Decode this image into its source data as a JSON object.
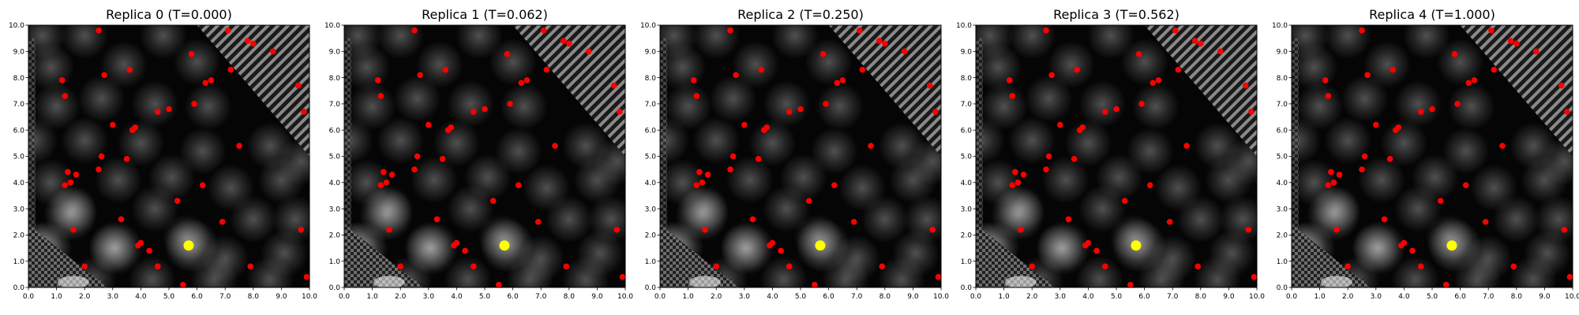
{
  "figure": {
    "background": "#ffffff"
  },
  "chart_data": [
    {
      "type": "scatter",
      "title": "Replica 0 (T=0.000)",
      "xlim": [
        0,
        10
      ],
      "ylim": [
        0,
        10
      ],
      "xticks": [
        "0.0",
        "1.0",
        "2.0",
        "3.0",
        "4.0",
        "5.0",
        "6.0",
        "7.0",
        "8.0",
        "9.0",
        "10.0"
      ],
      "yticks": [
        "0.0",
        "1.0",
        "2.0",
        "3.0",
        "4.0",
        "5.0",
        "6.0",
        "7.0",
        "8.0",
        "9.0",
        "10.0"
      ],
      "background": "grayscale-field",
      "series": [
        {
          "color": "#ff0000",
          "x": [
            2.5,
            5.8,
            7.1,
            7.8,
            8.0,
            8.7,
            9.6,
            9.8,
            7.2,
            6.5,
            6.3,
            3.6,
            1.2,
            1.3,
            2.7,
            3.0,
            3.8,
            3.7,
            4.6,
            5.0,
            5.9,
            7.5,
            6.2,
            1.4,
            1.5,
            1.7,
            1.3,
            2.5,
            2.6,
            3.5,
            5.3,
            1.6,
            3.3,
            4.0,
            4.3,
            3.9,
            4.6,
            6.9,
            2.0,
            5.5,
            7.9,
            9.7,
            9.9
          ],
          "y": [
            9.8,
            8.9,
            9.8,
            9.4,
            9.3,
            9.0,
            7.7,
            6.7,
            8.3,
            7.9,
            7.8,
            8.3,
            7.9,
            7.3,
            8.1,
            6.2,
            6.1,
            6.0,
            6.7,
            6.8,
            7.0,
            5.4,
            3.9,
            4.4,
            4.0,
            4.3,
            3.9,
            4.5,
            5.0,
            4.9,
            3.3,
            2.2,
            2.6,
            1.7,
            1.4,
            1.6,
            0.8,
            2.5,
            0.8,
            0.1,
            0.8,
            2.2,
            0.4
          ]
        },
        {
          "color": "#ffff00",
          "x": [
            5.7
          ],
          "y": [
            1.6
          ]
        }
      ]
    },
    {
      "type": "scatter",
      "title": "Replica 1 (T=0.062)",
      "xlim": [
        0,
        10
      ],
      "ylim": [
        0,
        10
      ],
      "xticks": [
        "0.0",
        "1.0",
        "2.0",
        "3.0",
        "4.0",
        "5.0",
        "6.0",
        "7.0",
        "8.0",
        "9.0",
        "10.0"
      ],
      "yticks": [
        "0.0",
        "1.0",
        "2.0",
        "3.0",
        "4.0",
        "5.0",
        "6.0",
        "7.0",
        "8.0",
        "9.0",
        "10.0"
      ],
      "background": "grayscale-field",
      "series": [
        {
          "color": "#ff0000",
          "x": [
            2.5,
            5.8,
            7.1,
            7.8,
            8.0,
            8.7,
            9.6,
            9.8,
            7.2,
            6.5,
            6.3,
            3.6,
            1.2,
            1.3,
            2.7,
            3.0,
            3.8,
            3.7,
            4.6,
            5.0,
            5.9,
            7.5,
            6.2,
            1.4,
            1.5,
            1.7,
            1.3,
            2.5,
            2.6,
            3.5,
            5.3,
            1.6,
            3.3,
            4.0,
            4.3,
            3.9,
            4.6,
            6.9,
            2.0,
            5.5,
            7.9,
            9.7,
            9.9
          ],
          "y": [
            9.8,
            8.9,
            9.8,
            9.4,
            9.3,
            9.0,
            7.7,
            6.7,
            8.3,
            7.9,
            7.8,
            8.3,
            7.9,
            7.3,
            8.1,
            6.2,
            6.1,
            6.0,
            6.7,
            6.8,
            7.0,
            5.4,
            3.9,
            4.4,
            4.0,
            4.3,
            3.9,
            4.5,
            5.0,
            4.9,
            3.3,
            2.2,
            2.6,
            1.7,
            1.4,
            1.6,
            0.8,
            2.5,
            0.8,
            0.1,
            0.8,
            2.2,
            0.4
          ]
        },
        {
          "color": "#ffff00",
          "x": [
            5.7
          ],
          "y": [
            1.6
          ]
        }
      ]
    },
    {
      "type": "scatter",
      "title": "Replica 2 (T=0.250)",
      "xlim": [
        0,
        10
      ],
      "ylim": [
        0,
        10
      ],
      "xticks": [
        "0.0",
        "1.0",
        "2.0",
        "3.0",
        "4.0",
        "5.0",
        "6.0",
        "7.0",
        "8.0",
        "9.0",
        "10.0"
      ],
      "yticks": [
        "0.0",
        "1.0",
        "2.0",
        "3.0",
        "4.0",
        "5.0",
        "6.0",
        "7.0",
        "8.0",
        "9.0",
        "10.0"
      ],
      "background": "grayscale-field",
      "series": [
        {
          "color": "#ff0000",
          "x": [
            2.5,
            5.8,
            7.1,
            7.8,
            8.0,
            8.7,
            9.6,
            9.8,
            7.2,
            6.5,
            6.3,
            3.6,
            1.2,
            1.3,
            2.7,
            3.0,
            3.8,
            3.7,
            4.6,
            5.0,
            5.9,
            7.5,
            6.2,
            1.4,
            1.5,
            1.7,
            1.3,
            2.5,
            2.6,
            3.5,
            5.3,
            1.6,
            3.3,
            4.0,
            4.3,
            3.9,
            4.6,
            6.9,
            2.0,
            5.5,
            7.9,
            9.7,
            9.9
          ],
          "y": [
            9.8,
            8.9,
            9.8,
            9.4,
            9.3,
            9.0,
            7.7,
            6.7,
            8.3,
            7.9,
            7.8,
            8.3,
            7.9,
            7.3,
            8.1,
            6.2,
            6.1,
            6.0,
            6.7,
            6.8,
            7.0,
            5.4,
            3.9,
            4.4,
            4.0,
            4.3,
            3.9,
            4.5,
            5.0,
            4.9,
            3.3,
            2.2,
            2.6,
            1.7,
            1.4,
            1.6,
            0.8,
            2.5,
            0.8,
            0.1,
            0.8,
            2.2,
            0.4
          ]
        },
        {
          "color": "#ffff00",
          "x": [
            5.7
          ],
          "y": [
            1.6
          ]
        }
      ]
    },
    {
      "type": "scatter",
      "title": "Replica 3 (T=0.562)",
      "xlim": [
        0,
        10
      ],
      "ylim": [
        0,
        10
      ],
      "xticks": [
        "0.0",
        "1.0",
        "2.0",
        "3.0",
        "4.0",
        "5.0",
        "6.0",
        "7.0",
        "8.0",
        "9.0",
        "10.0"
      ],
      "yticks": [
        "0.0",
        "1.0",
        "2.0",
        "3.0",
        "4.0",
        "5.0",
        "6.0",
        "7.0",
        "8.0",
        "9.0",
        "10.0"
      ],
      "background": "grayscale-field",
      "series": [
        {
          "color": "#ff0000",
          "x": [
            2.5,
            5.8,
            7.1,
            7.8,
            8.0,
            8.7,
            9.6,
            9.8,
            7.2,
            6.5,
            6.3,
            3.6,
            1.2,
            1.3,
            2.7,
            3.0,
            3.8,
            3.7,
            4.6,
            5.0,
            5.9,
            7.5,
            6.2,
            1.4,
            1.5,
            1.7,
            1.3,
            2.5,
            2.6,
            3.5,
            5.3,
            1.6,
            3.3,
            4.0,
            4.3,
            3.9,
            4.6,
            6.9,
            2.0,
            5.5,
            7.9,
            9.7,
            9.9
          ],
          "y": [
            9.8,
            8.9,
            9.8,
            9.4,
            9.3,
            9.0,
            7.7,
            6.7,
            8.3,
            7.9,
            7.8,
            8.3,
            7.9,
            7.3,
            8.1,
            6.2,
            6.1,
            6.0,
            6.7,
            6.8,
            7.0,
            5.4,
            3.9,
            4.4,
            4.0,
            4.3,
            3.9,
            4.5,
            5.0,
            4.9,
            3.3,
            2.2,
            2.6,
            1.7,
            1.4,
            1.6,
            0.8,
            2.5,
            0.8,
            0.1,
            0.8,
            2.2,
            0.4
          ]
        },
        {
          "color": "#ffff00",
          "x": [
            5.7
          ],
          "y": [
            1.6
          ]
        }
      ]
    },
    {
      "type": "scatter",
      "title": "Replica 4 (T=1.000)",
      "xlim": [
        0,
        10
      ],
      "ylim": [
        0,
        10
      ],
      "xticks": [
        "0.0",
        "1.0",
        "2.0",
        "3.0",
        "4.0",
        "5.0",
        "6.0",
        "7.0",
        "8.0",
        "9.0",
        "10.0"
      ],
      "yticks": [
        "0.0",
        "1.0",
        "2.0",
        "3.0",
        "4.0",
        "5.0",
        "6.0",
        "7.0",
        "8.0",
        "9.0",
        "10.0"
      ],
      "background": "grayscale-field",
      "series": [
        {
          "color": "#ff0000",
          "x": [
            2.5,
            5.8,
            7.1,
            7.8,
            8.0,
            8.7,
            9.6,
            9.8,
            7.2,
            6.5,
            6.3,
            3.6,
            1.2,
            1.3,
            2.7,
            3.0,
            3.8,
            3.7,
            4.6,
            5.0,
            5.9,
            7.5,
            6.2,
            1.4,
            1.5,
            1.7,
            1.3,
            2.5,
            2.6,
            3.5,
            5.3,
            1.6,
            3.3,
            4.0,
            4.3,
            3.9,
            4.6,
            6.9,
            2.0,
            5.5,
            7.9,
            9.7,
            9.9
          ],
          "y": [
            9.8,
            8.9,
            9.8,
            9.4,
            9.3,
            9.0,
            7.7,
            6.7,
            8.3,
            7.9,
            7.8,
            8.3,
            7.9,
            7.3,
            8.1,
            6.2,
            6.1,
            6.0,
            6.7,
            6.8,
            7.0,
            5.4,
            3.9,
            4.4,
            4.0,
            4.3,
            3.9,
            4.5,
            5.0,
            4.9,
            3.3,
            2.2,
            2.6,
            1.7,
            1.4,
            1.6,
            0.8,
            2.5,
            0.8,
            0.1,
            0.8,
            2.2,
            0.4
          ]
        },
        {
          "color": "#ffff00",
          "x": [
            5.7
          ],
          "y": [
            1.6
          ]
        }
      ]
    }
  ]
}
